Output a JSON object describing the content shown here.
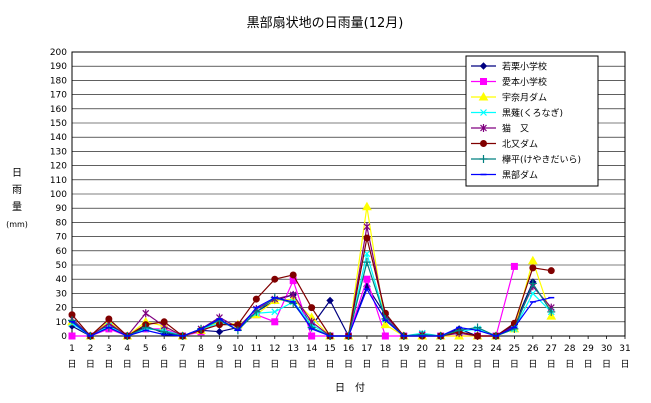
{
  "chart_data": {
    "type": "line",
    "title": "黒部扇状地の日雨量(12月)",
    "xlabel": "日　付",
    "ylabel": "日雨量(mm)",
    "ylabel_lines": [
      "日",
      "雨",
      "量",
      "(mm)"
    ],
    "ylim": [
      0,
      200
    ],
    "ytick_step": 10,
    "grid": true,
    "legend_position": "top-right",
    "day_suffix": "日",
    "x": [
      1,
      2,
      3,
      4,
      5,
      6,
      7,
      8,
      9,
      10,
      11,
      12,
      13,
      14,
      15,
      16,
      17,
      18,
      19,
      20,
      21,
      22,
      23,
      24,
      25,
      26,
      27,
      28,
      29,
      30,
      31
    ],
    "series": [
      {
        "name": "若栗小学校",
        "color": "#000080",
        "marker": "diamond",
        "values": [
          7,
          0,
          8,
          0,
          7,
          2,
          0,
          4,
          3,
          6,
          17,
          25,
          29,
          7,
          25,
          0,
          35,
          15,
          0,
          0,
          0,
          5,
          0,
          0,
          8,
          38,
          null,
          null,
          null,
          null,
          null
        ]
      },
      {
        "name": "愛本小学校",
        "color": "#ff00ff",
        "marker": "square",
        "values": [
          0,
          0,
          5,
          0,
          5,
          5,
          0,
          3,
          10,
          7,
          15,
          10,
          39,
          0,
          0,
          0,
          40,
          0,
          0,
          0,
          0,
          0,
          0,
          0,
          49,
          null,
          null,
          null,
          null,
          null,
          null
        ]
      },
      {
        "name": "宇奈月ダム",
        "color": "#ffff00",
        "marker": "triangle",
        "values": [
          10,
          0,
          10,
          0,
          10,
          7,
          0,
          4,
          10,
          8,
          15,
          25,
          26,
          13,
          0,
          0,
          91,
          8,
          0,
          0,
          0,
          0,
          0,
          0,
          5,
          53,
          14,
          null,
          null,
          null,
          null
        ]
      },
      {
        "name": "黒薙(くろなぎ)",
        "color": "#00ffff",
        "marker": "x",
        "values": [
          9,
          0,
          7,
          0,
          5,
          4,
          0,
          5,
          9,
          7,
          16,
          17,
          24,
          8,
          0,
          0,
          58,
          12,
          0,
          2,
          0,
          3,
          5,
          0,
          5,
          30,
          17,
          null,
          null,
          null,
          null
        ]
      },
      {
        "name": "猫　又",
        "color": "#800080",
        "marker": "star",
        "values": [
          12,
          0,
          9,
          0,
          16,
          7,
          0,
          5,
          13,
          6,
          19,
          26,
          29,
          10,
          0,
          0,
          77,
          14,
          0,
          1,
          0,
          2,
          0,
          0,
          7,
          35,
          20,
          null,
          null,
          null,
          null
        ]
      },
      {
        "name": "北又ダム",
        "color": "#800000",
        "marker": "circle",
        "values": [
          15,
          0,
          12,
          0,
          8,
          10,
          0,
          4,
          8,
          8,
          26,
          40,
          43,
          20,
          0,
          0,
          69,
          16,
          0,
          0,
          0,
          3,
          0,
          0,
          9,
          48,
          46,
          null,
          null,
          null,
          null
        ]
      },
      {
        "name": "欅平(けやきだいら)",
        "color": "#008080",
        "marker": "plus",
        "values": [
          11,
          0,
          6,
          0,
          6,
          3,
          0,
          5,
          11,
          4,
          17,
          27,
          23,
          6,
          0,
          0,
          52,
          12,
          0,
          1,
          0,
          4,
          6,
          0,
          5,
          37,
          17,
          null,
          null,
          null,
          null
        ]
      },
      {
        "name": "黒部ダム",
        "color": "#0000ff",
        "marker": "dash",
        "values": [
          10,
          0,
          6,
          0,
          4,
          1,
          0,
          5,
          12,
          4,
          20,
          27,
          24,
          5,
          0,
          0,
          33,
          11,
          0,
          0,
          0,
          6,
          4,
          0,
          6,
          24,
          27,
          null,
          null,
          null,
          null
        ]
      }
    ]
  }
}
